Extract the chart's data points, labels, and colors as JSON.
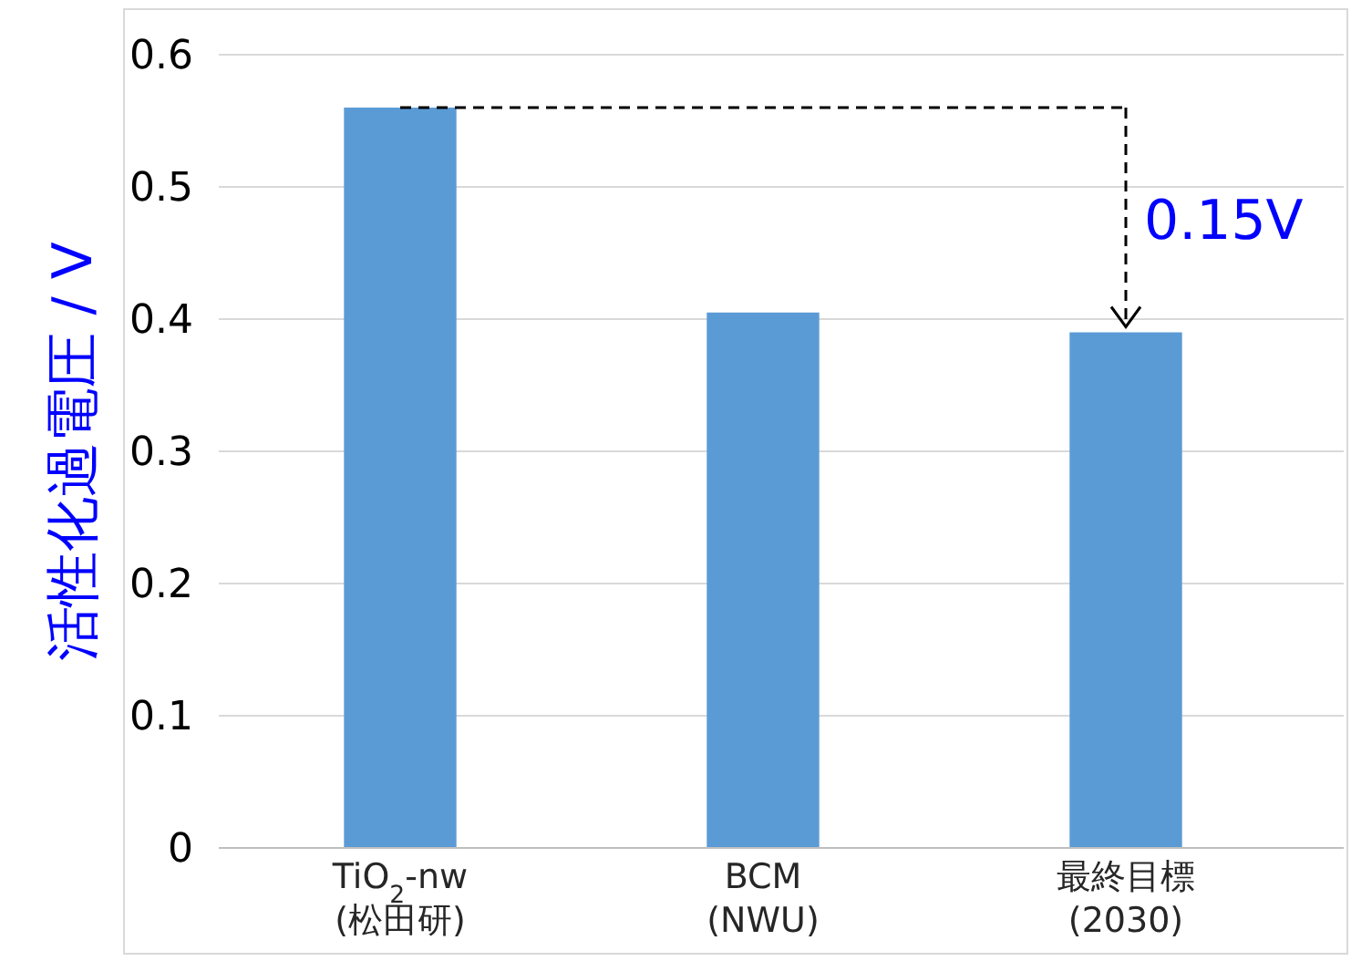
{
  "chart_data": {
    "type": "bar",
    "ylabel": "活性化過電圧 / V",
    "categories": [
      "TiO$_{2}$-nw\n(松田研)",
      "BCM\n(NWU)",
      "最終目標\n(2030)"
    ],
    "values": [
      0.56,
      0.405,
      0.39
    ],
    "color": "#5b9bd5",
    "ylim": [
      0,
      0.6
    ],
    "yticks": [
      0,
      0.1,
      0.2,
      0.3,
      0.4,
      0.5,
      0.6
    ],
    "grid": "y",
    "annotations": [
      "0.15V"
    ],
    "ref_lines": [
      {
        "axis": "y",
        "value": 0.56,
        "color": "#000000",
        "line_style": "dashed"
      }
    ]
  }
}
